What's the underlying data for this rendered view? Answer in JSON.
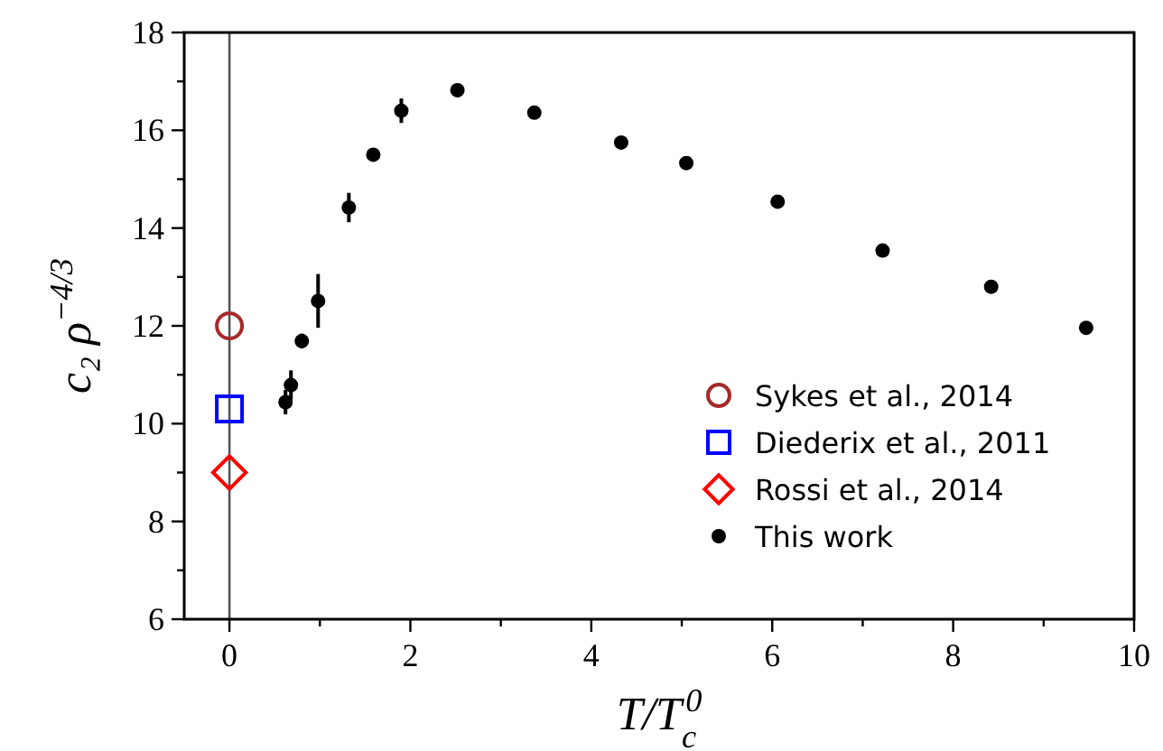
{
  "chart_data": {
    "type": "scatter",
    "xlabel": "T/T$_{c}$$^{0}$",
    "ylabel": "c₂ ρ$^{−4/3}$",
    "xlim": [
      -0.5,
      10
    ],
    "ylim": [
      6,
      18
    ],
    "xticks": [
      0,
      {
        "value": 1,
        "label": null
      },
      2,
      {
        "value": 3,
        "label": null
      },
      4,
      {
        "value": 5,
        "label": null
      },
      6,
      {
        "value": 7,
        "label": null
      },
      8,
      {
        "value": 9,
        "label": null
      },
      10
    ],
    "yticks": [
      6,
      {
        "value": 7,
        "label": null
      },
      8,
      {
        "value": 9,
        "label": null
      },
      10,
      {
        "value": 11,
        "label": null
      },
      12,
      {
        "value": 13,
        "label": null
      },
      14,
      {
        "value": 15,
        "label": null
      },
      16,
      {
        "value": 17,
        "label": null
      },
      18
    ],
    "grid": false,
    "legend": "bottom right",
    "ref_lines": [
      {
        "axis": "x",
        "value": 0,
        "color": "#555555",
        "line_style": "solid"
      }
    ],
    "series": [
      {
        "name": "Sykes et al., 2014",
        "color": "#a52a2a",
        "marker": "circle",
        "x": [
          0
        ],
        "values": [
          12.0
        ]
      },
      {
        "name": "Diederix et al., 2011",
        "color": "#0000ff",
        "marker": "square",
        "x": [
          0
        ],
        "values": [
          10.3
        ]
      },
      {
        "name": "Rossi et al., 2014",
        "color": "#ff0000",
        "marker": "diamond",
        "x": [
          0
        ],
        "values": [
          9.0
        ]
      },
      {
        "name": "This work",
        "color": "#000000",
        "marker": "circle",
        "x": [
          0.62,
          0.68,
          0.8,
          0.98,
          1.32,
          1.59,
          1.9,
          2.52,
          3.37,
          4.33,
          5.05,
          6.06,
          7.22,
          8.42,
          9.47
        ],
        "values": [
          10.44,
          10.79,
          11.69,
          12.51,
          14.42,
          15.5,
          16.4,
          16.82,
          16.36,
          15.75,
          15.33,
          14.54,
          13.54,
          12.8,
          11.96
        ],
        "errors": [
          0.25,
          0.3,
          0.15,
          0.55,
          0.3,
          null,
          0.25,
          null,
          null,
          null,
          null,
          null,
          null,
          null,
          null
        ]
      }
    ]
  }
}
